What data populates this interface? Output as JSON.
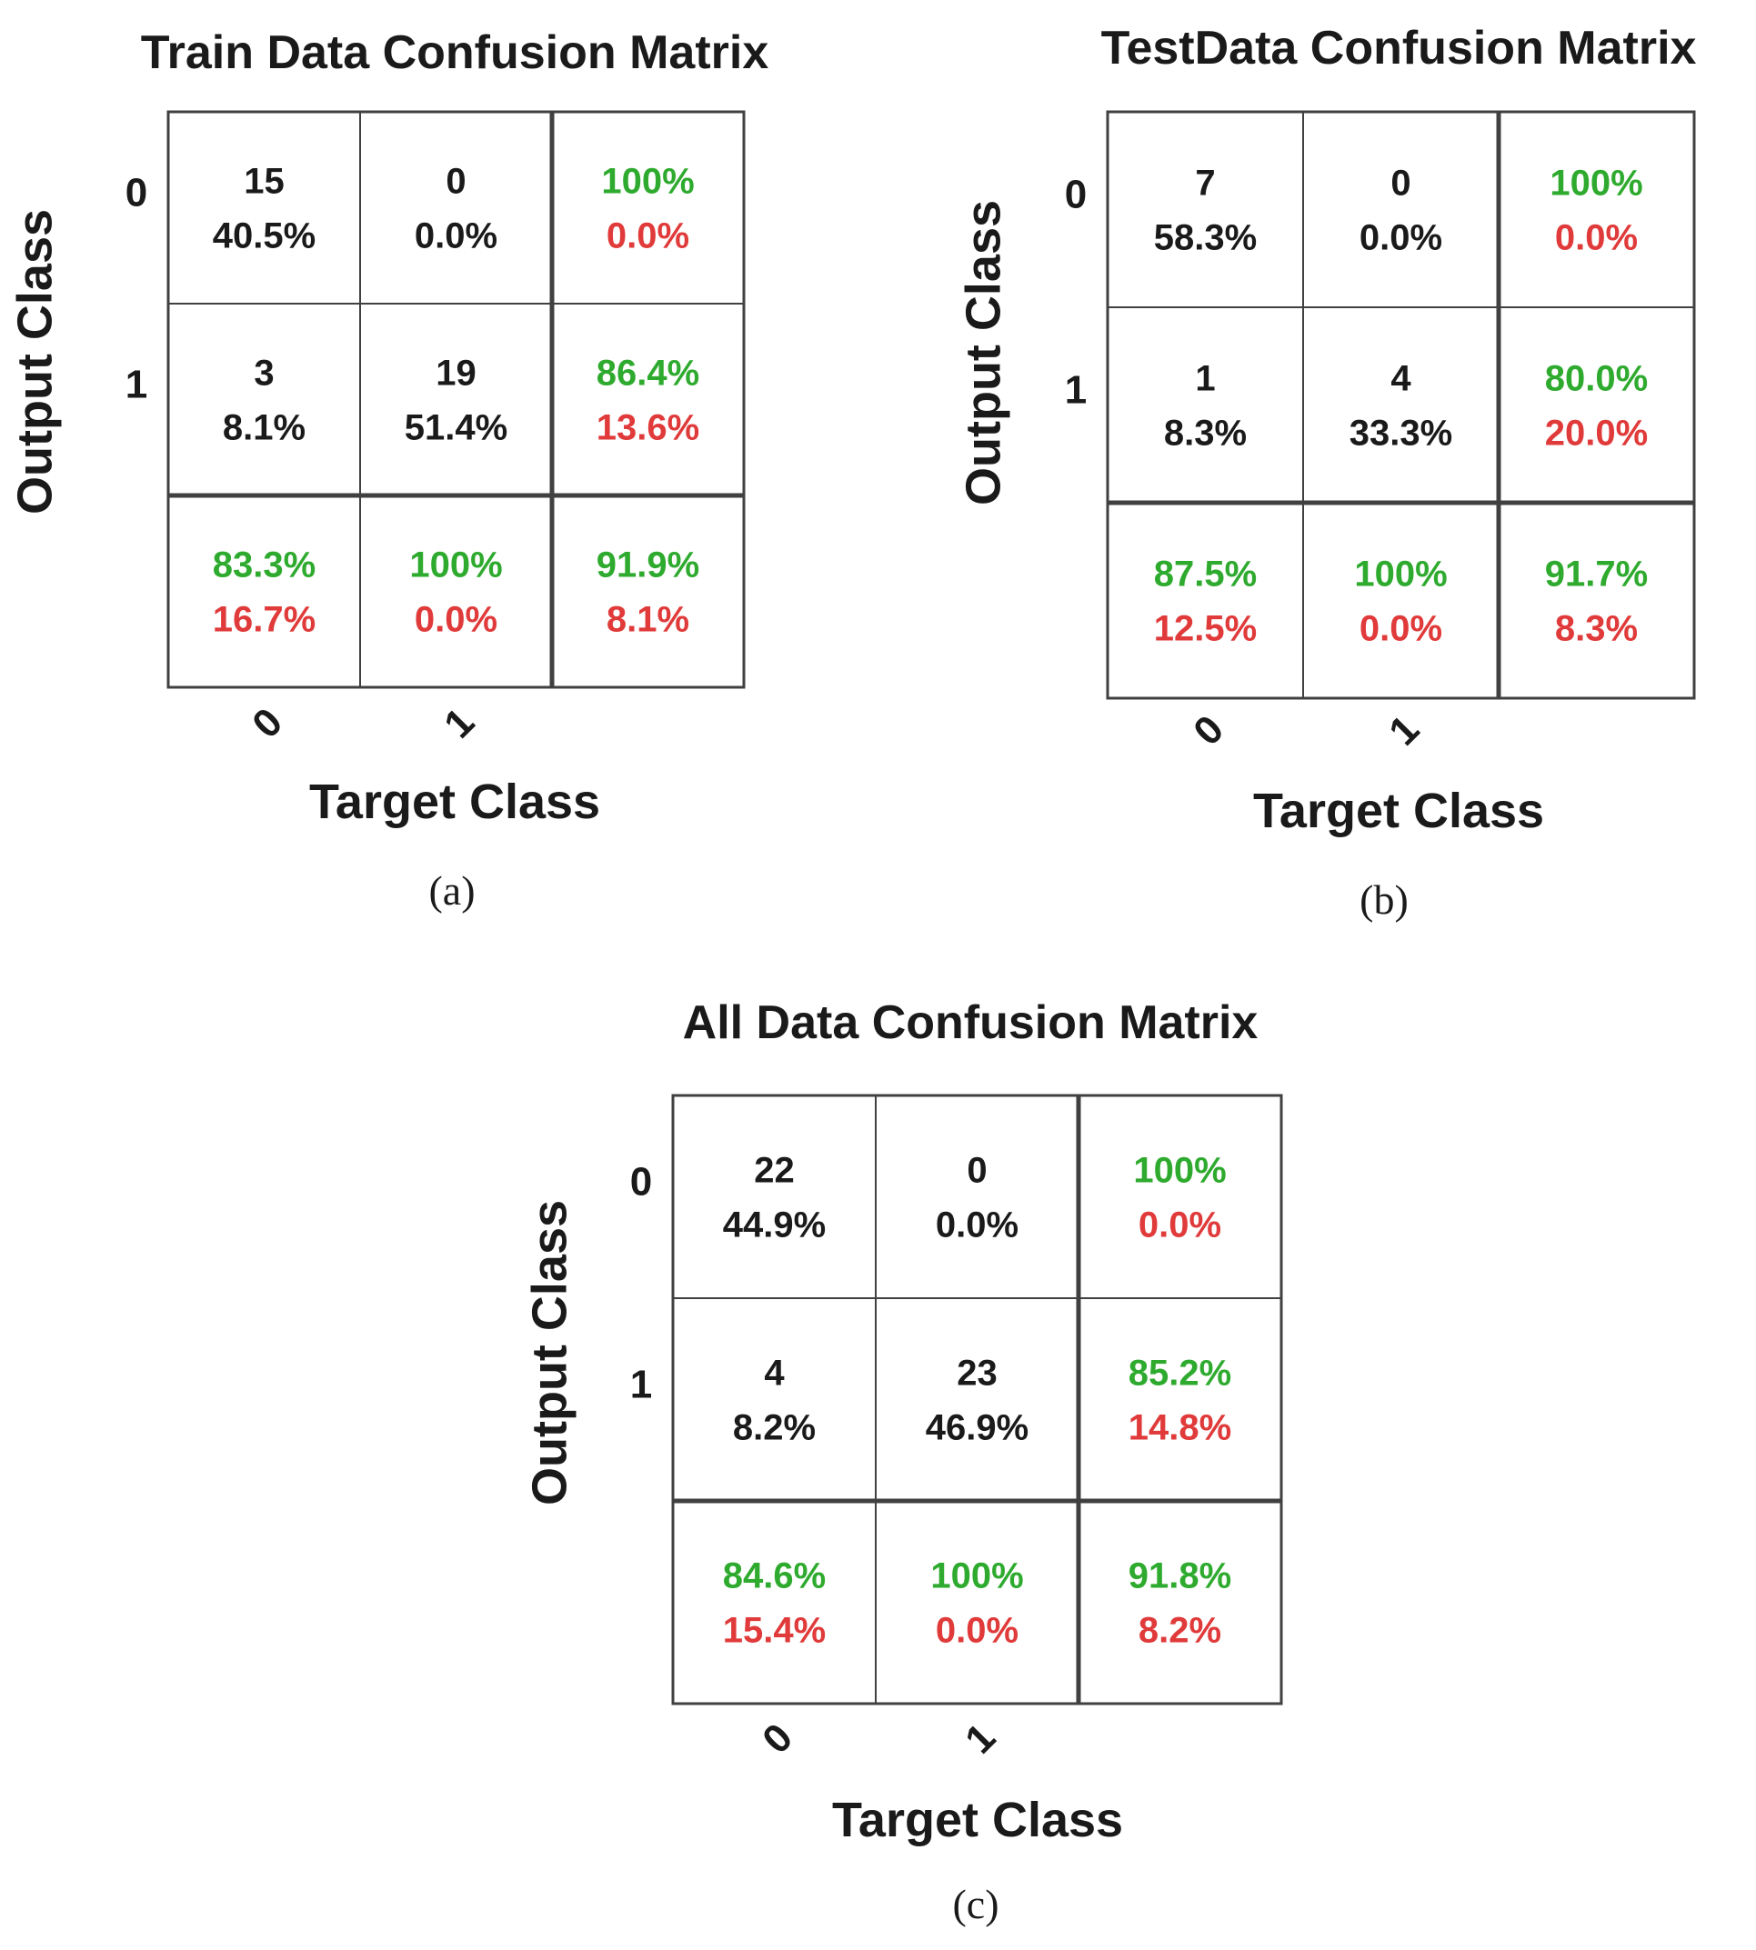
{
  "colors": {
    "count": "#1a1a1a",
    "correct": "#2eaa2e",
    "error": "#e03a3a",
    "grid": "#404040"
  },
  "chart_data": [
    {
      "type": "table",
      "title": "Train Data Confusion Matrix",
      "xlabel": "Target Class",
      "ylabel": "Output Class",
      "caption": "(a)",
      "row_ticks": [
        "0",
        "1"
      ],
      "col_ticks": [
        "0",
        "1"
      ],
      "counts": [
        [
          15,
          0
        ],
        [
          3,
          19
        ]
      ],
      "count_pct": [
        [
          "40.5%",
          "0.0%"
        ],
        [
          "8.1%",
          "51.4%"
        ]
      ],
      "row_summary": [
        [
          "100%",
          "0.0%"
        ],
        [
          "86.4%",
          "13.6%"
        ]
      ],
      "col_summary": [
        [
          "83.3%",
          "16.7%"
        ],
        [
          "100%",
          "0.0%"
        ]
      ],
      "overall": [
        "91.9%",
        "8.1%"
      ]
    },
    {
      "type": "table",
      "title": "TestData Confusion Matrix",
      "xlabel": "Target Class",
      "ylabel": "Output Class",
      "caption": "(b)",
      "row_ticks": [
        "0",
        "1"
      ],
      "col_ticks": [
        "0",
        "1"
      ],
      "counts": [
        [
          7,
          0
        ],
        [
          1,
          4
        ]
      ],
      "count_pct": [
        [
          "58.3%",
          "0.0%"
        ],
        [
          "8.3%",
          "33.3%"
        ]
      ],
      "row_summary": [
        [
          "100%",
          "0.0%"
        ],
        [
          "80.0%",
          "20.0%"
        ]
      ],
      "col_summary": [
        [
          "87.5%",
          "12.5%"
        ],
        [
          "100%",
          "0.0%"
        ]
      ],
      "overall": [
        "91.7%",
        "8.3%"
      ]
    },
    {
      "type": "table",
      "title": "All Data Confusion Matrix",
      "xlabel": "Target Class",
      "ylabel": "Output Class",
      "caption": "(c)",
      "row_ticks": [
        "0",
        "1"
      ],
      "col_ticks": [
        "0",
        "1"
      ],
      "counts": [
        [
          22,
          0
        ],
        [
          4,
          23
        ]
      ],
      "count_pct": [
        [
          "44.9%",
          "0.0%"
        ],
        [
          "8.2%",
          "46.9%"
        ]
      ],
      "row_summary": [
        [
          "100%",
          "0.0%"
        ],
        [
          "85.2%",
          "14.8%"
        ]
      ],
      "col_summary": [
        [
          "84.6%",
          "15.4%"
        ],
        [
          "100%",
          "0.0%"
        ]
      ],
      "overall": [
        "91.8%",
        "8.2%"
      ]
    }
  ]
}
